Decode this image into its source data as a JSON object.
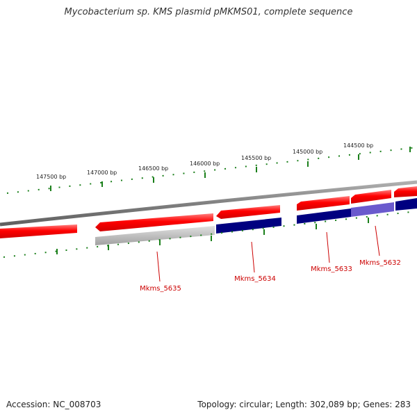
{
  "title": "Mycobacterium sp. KMS plasmid pMKMS01, complete sequence",
  "footer": {
    "accession": "Accession: NC_008703",
    "summary": "Topology: circular; Length: 302,089 bp; Genes: 283"
  },
  "scale": {
    "ticks": [
      {
        "bp": 147500,
        "label": "147500 bp"
      },
      {
        "bp": 147000,
        "label": "147000 bp"
      },
      {
        "bp": 146500,
        "label": "146500 bp"
      },
      {
        "bp": 146000,
        "label": "146000 bp"
      },
      {
        "bp": 145500,
        "label": "145500 bp"
      },
      {
        "bp": 145000,
        "label": "145000 bp"
      },
      {
        "bp": 144500,
        "label": "144500 bp"
      }
    ]
  },
  "genes": [
    {
      "label": "Mkms_5635"
    },
    {
      "label": "Mkms_5634"
    },
    {
      "label": "Mkms_5633"
    },
    {
      "label": "Mkms_5632"
    }
  ],
  "colors": {
    "cds": "#ff0000",
    "gene_blue": "#000080",
    "gene_light_blue": "#6a5acd",
    "gene_gray": "#b0b0b0",
    "backbone": "#808080",
    "tick": "#1a7f1a",
    "label": "#cc0000"
  }
}
